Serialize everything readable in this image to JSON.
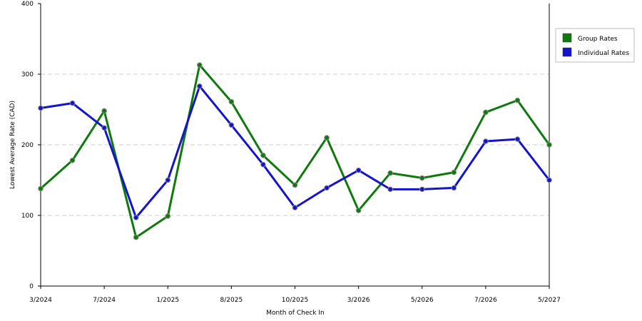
{
  "chart_data": {
    "type": "line",
    "xlabel": "Month of Check In",
    "ylabel": "Lowest Average Rate (CAD)",
    "ylim": [
      0,
      400
    ],
    "yticks": [
      0,
      100,
      200,
      300,
      400
    ],
    "grid": "horizontal dashed",
    "legend_position": "right",
    "x_tick_labels": [
      {
        "index": 0,
        "label": "3/2024"
      },
      {
        "index": 2,
        "label": "7/2024"
      },
      {
        "index": 4,
        "label": "1/2025"
      },
      {
        "index": 6,
        "label": "8/2025"
      },
      {
        "index": 8,
        "label": "10/2025"
      },
      {
        "index": 10,
        "label": "3/2026"
      },
      {
        "index": 12,
        "label": "5/2026"
      },
      {
        "index": 14,
        "label": "7/2026"
      },
      {
        "index": 16,
        "label": "5/2027"
      }
    ],
    "series": [
      {
        "name": "Group Rates",
        "color": "#0e7a0e",
        "values": [
          138,
          178,
          248,
          69,
          99,
          313,
          261,
          185,
          143,
          210,
          107,
          160,
          153,
          161,
          246,
          263,
          200
        ]
      },
      {
        "name": "Individual Rates",
        "color": "#1414cc",
        "values": [
          252,
          259,
          224,
          97,
          150,
          283,
          228,
          172,
          111,
          139,
          164,
          137,
          137,
          139,
          205,
          208,
          150
        ]
      }
    ]
  }
}
